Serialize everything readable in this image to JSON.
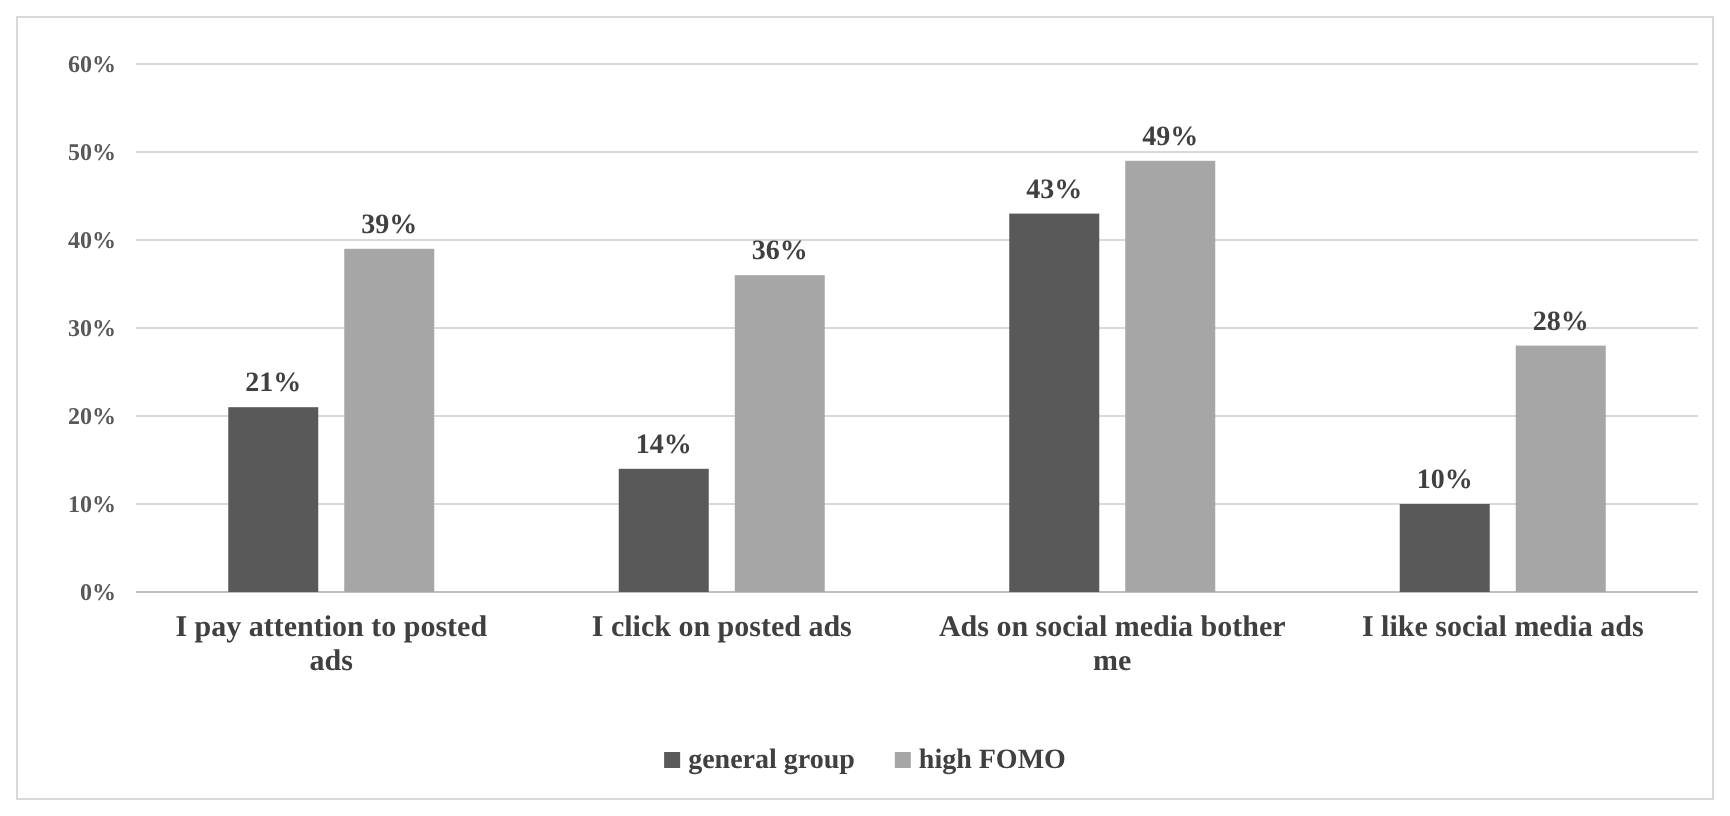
{
  "chart_data": {
    "type": "bar",
    "categories": [
      "I pay attention to posted ads",
      "I click on posted ads",
      "Ads on social media bother me",
      "I like social media ads"
    ],
    "series": [
      {
        "name": "general group",
        "color": "#595959",
        "values": [
          21,
          14,
          43,
          10
        ],
        "value_labels": [
          "21%",
          "14%",
          "43%",
          "10%"
        ]
      },
      {
        "name": "high FOMO",
        "color": "#a6a6a6",
        "values": [
          39,
          36,
          49,
          28
        ],
        "value_labels": [
          "39%",
          "36%",
          "49%",
          "28%"
        ]
      }
    ],
    "ylim": [
      0,
      60
    ],
    "yticks": [
      {
        "value": 0,
        "label": "0%"
      },
      {
        "value": 10,
        "label": "10%"
      },
      {
        "value": 20,
        "label": "20%"
      },
      {
        "value": 30,
        "label": "30%"
      },
      {
        "value": 40,
        "label": "40%"
      },
      {
        "value": 50,
        "label": "50%"
      },
      {
        "value": 60,
        "label": "60%"
      }
    ],
    "grid": "y",
    "legend": "bottom"
  }
}
